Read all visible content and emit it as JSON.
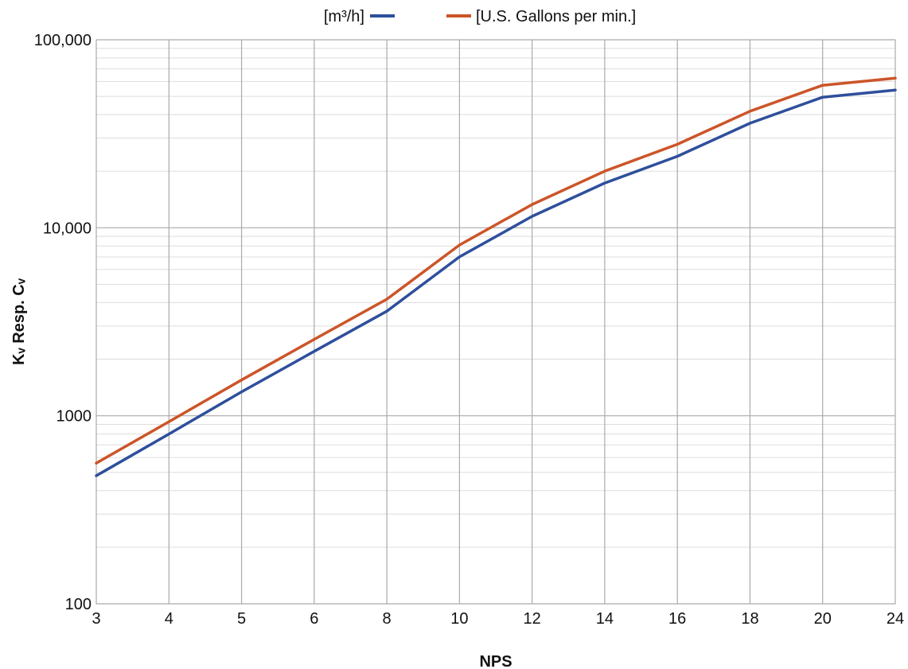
{
  "chart_data": {
    "type": "line",
    "title": "",
    "xlabel": "NPS",
    "ylabel": "Kᵥ Resp. Cᵥ",
    "categories": [
      "3",
      "4",
      "5",
      "6",
      "8",
      "10",
      "12",
      "14",
      "16",
      "18",
      "20",
      "24"
    ],
    "y_scale": "log",
    "ylim": [
      100,
      100000
    ],
    "y_tick_labels": [
      "100",
      "1000",
      "10,000",
      "100,000"
    ],
    "grid": true,
    "legend_position": "top",
    "series": [
      {
        "name": "[m³/h]",
        "color": "#2e4f9c",
        "values": [
          480,
          800,
          1340,
          2200,
          3600,
          7000,
          11500,
          17300,
          24000,
          36000,
          49500,
          54000
        ]
      },
      {
        "name": "[U.S. Gallons per min.]",
        "color": "#cc5529",
        "values": [
          560,
          930,
          1550,
          2550,
          4170,
          8100,
          13300,
          20000,
          27800,
          41700,
          57300,
          62500
        ]
      }
    ]
  }
}
